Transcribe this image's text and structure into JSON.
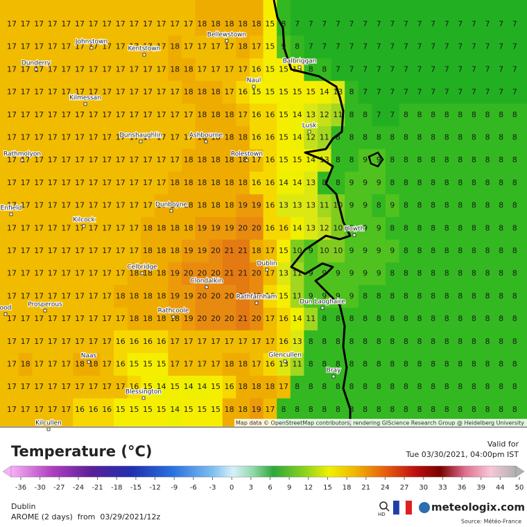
{
  "map": {
    "attribution": "Map data © OpenStreetMap contributors, rendering GIScience Research Group @ Heidelberg University",
    "places": [
      "Bellewstown",
      "Johnstown",
      "Kentstown",
      "Balbriggan",
      "Dunderry",
      "Naul",
      "Kilmessan",
      "Lusk",
      "Dunshaughlin",
      "Ashbourne",
      "Rathmolyon",
      "Rolestown",
      "Dunboyne",
      "Enfield",
      "Kilcock",
      "Howth",
      "Dublin",
      "Celbridge",
      "Clondalkin",
      "Rathfarnham",
      "Dun Laoghaire",
      "Prosperous",
      "ood",
      "Rathcoole",
      "Glencullen",
      "Naas",
      "Bray",
      "Blessington",
      "Kilcullen"
    ],
    "grid": [
      [
        17,
        17,
        17,
        17,
        17,
        17,
        17,
        17,
        17,
        17,
        17,
        17,
        17,
        17,
        18,
        18,
        18,
        18,
        18,
        15,
        8,
        7,
        7,
        7,
        7,
        7,
        7,
        7,
        7,
        7,
        7,
        7,
        7,
        7,
        7,
        7,
        7,
        7
      ],
      [
        17,
        17,
        17,
        17,
        17,
        17,
        17,
        17,
        17,
        17,
        17,
        17,
        18,
        17,
        17,
        17,
        17,
        18,
        17,
        15,
        9,
        8,
        7,
        7,
        7,
        7,
        7,
        7,
        7,
        7,
        7,
        7,
        7,
        7,
        7,
        7,
        7,
        7
      ],
      [
        17,
        17,
        17,
        17,
        17,
        17,
        17,
        17,
        17,
        17,
        17,
        17,
        18,
        18,
        17,
        17,
        17,
        17,
        16,
        15,
        15,
        15,
        8,
        8,
        7,
        7,
        7,
        7,
        7,
        7,
        7,
        7,
        7,
        7,
        7,
        7,
        7,
        7
      ],
      [
        17,
        17,
        17,
        17,
        17,
        17,
        17,
        17,
        17,
        17,
        17,
        17,
        17,
        18,
        18,
        18,
        17,
        16,
        15,
        15,
        15,
        15,
        15,
        14,
        13,
        8,
        7,
        7,
        7,
        7,
        7,
        7,
        7,
        7,
        7,
        7,
        7,
        7
      ],
      [
        17,
        17,
        17,
        17,
        17,
        17,
        17,
        17,
        17,
        17,
        17,
        17,
        17,
        17,
        18,
        18,
        18,
        17,
        16,
        16,
        15,
        14,
        13,
        12,
        11,
        8,
        8,
        7,
        7,
        8,
        8,
        8,
        8,
        8,
        8,
        8,
        8,
        8
      ],
      [
        17,
        17,
        17,
        17,
        17,
        17,
        17,
        17,
        17,
        17,
        17,
        17,
        17,
        17,
        18,
        18,
        18,
        18,
        16,
        16,
        15,
        14,
        12,
        11,
        8,
        8,
        8,
        8,
        8,
        8,
        8,
        8,
        8,
        8,
        8,
        8,
        8,
        8
      ],
      [
        17,
        17,
        17,
        17,
        17,
        17,
        17,
        17,
        17,
        17,
        17,
        17,
        17,
        18,
        18,
        18,
        18,
        18,
        17,
        16,
        15,
        15,
        14,
        13,
        8,
        8,
        9,
        9,
        8,
        8,
        8,
        8,
        8,
        8,
        8,
        8,
        8,
        8
      ],
      [
        17,
        17,
        17,
        17,
        17,
        17,
        17,
        17,
        17,
        17,
        17,
        17,
        18,
        18,
        18,
        18,
        18,
        18,
        16,
        16,
        14,
        14,
        13,
        8,
        8,
        9,
        9,
        9,
        8,
        8,
        8,
        8,
        8,
        8,
        8,
        8,
        8,
        8
      ],
      [
        17,
        17,
        17,
        17,
        17,
        17,
        17,
        17,
        17,
        17,
        17,
        18,
        18,
        18,
        18,
        18,
        18,
        19,
        19,
        16,
        13,
        13,
        13,
        11,
        10,
        9,
        9,
        8,
        9,
        8,
        8,
        8,
        8,
        8,
        8,
        8,
        8,
        8
      ],
      [
        17,
        17,
        17,
        17,
        17,
        17,
        17,
        17,
        17,
        17,
        18,
        18,
        18,
        18,
        19,
        19,
        19,
        20,
        20,
        16,
        16,
        14,
        13,
        12,
        10,
        9,
        9,
        9,
        8,
        8,
        8,
        8,
        8,
        8,
        8,
        8,
        8,
        8
      ],
      [
        17,
        17,
        17,
        17,
        17,
        17,
        17,
        17,
        17,
        17,
        18,
        18,
        18,
        19,
        19,
        20,
        21,
        21,
        18,
        17,
        15,
        10,
        9,
        10,
        10,
        9,
        9,
        9,
        9,
        8,
        8,
        8,
        8,
        8,
        8,
        8,
        8,
        8
      ],
      [
        17,
        17,
        17,
        17,
        17,
        17,
        17,
        17,
        17,
        18,
        18,
        18,
        19,
        20,
        20,
        20,
        21,
        21,
        20,
        17,
        13,
        11,
        9,
        9,
        9,
        9,
        9,
        9,
        8,
        8,
        8,
        8,
        8,
        8,
        8,
        8,
        8,
        8
      ],
      [
        17,
        17,
        17,
        17,
        17,
        17,
        17,
        17,
        18,
        18,
        18,
        18,
        19,
        19,
        20,
        20,
        20,
        21,
        20,
        16,
        15,
        11,
        9,
        9,
        9,
        9,
        8,
        8,
        8,
        8,
        8,
        8,
        8,
        8,
        8,
        8,
        8,
        8
      ],
      [
        17,
        17,
        17,
        17,
        17,
        17,
        17,
        17,
        17,
        18,
        18,
        18,
        18,
        19,
        20,
        20,
        20,
        21,
        20,
        17,
        16,
        14,
        11,
        8,
        8,
        8,
        8,
        8,
        8,
        8,
        8,
        8,
        8,
        8,
        8,
        8,
        8,
        8
      ],
      [
        17,
        17,
        17,
        17,
        17,
        17,
        17,
        17,
        16,
        16,
        16,
        16,
        17,
        17,
        17,
        17,
        17,
        17,
        17,
        17,
        16,
        13,
        8,
        8,
        8,
        8,
        8,
        8,
        8,
        8,
        8,
        8,
        8,
        8,
        8,
        8,
        8,
        8
      ],
      [
        17,
        18,
        17,
        17,
        17,
        18,
        18,
        17,
        16,
        15,
        15,
        15,
        17,
        17,
        17,
        17,
        18,
        18,
        17,
        16,
        13,
        11,
        8,
        8,
        8,
        8,
        8,
        8,
        8,
        8,
        8,
        8,
        8,
        8,
        8,
        8,
        8,
        8
      ],
      [
        17,
        17,
        17,
        17,
        17,
        17,
        17,
        17,
        17,
        16,
        15,
        14,
        15,
        14,
        14,
        15,
        16,
        18,
        18,
        18,
        17,
        8,
        8,
        8,
        8,
        8,
        8,
        8,
        8,
        8,
        8,
        8,
        8,
        8,
        8,
        8,
        8,
        8
      ],
      [
        17,
        17,
        17,
        17,
        17,
        16,
        16,
        16,
        15,
        15,
        15,
        15,
        14,
        15,
        15,
        15,
        18,
        18,
        19,
        17,
        8,
        8,
        8,
        8,
        8,
        8,
        8,
        8,
        8,
        8,
        8,
        8,
        8,
        8,
        8,
        8,
        8,
        8
      ]
    ]
  },
  "legend": {
    "title": "Temperature (°C)",
    "ticks": [
      -36,
      -30,
      -27,
      -24,
      -21,
      -18,
      -15,
      -12,
      -9,
      -6,
      -3,
      0,
      3,
      6,
      9,
      12,
      15,
      18,
      21,
      24,
      27,
      30,
      33,
      36,
      39,
      44,
      50
    ]
  },
  "valid": {
    "label": "Valid for",
    "time": "Tue 03/30/2021, 04:00pm IST"
  },
  "footer": {
    "location": "Dublin",
    "model": "AROME (2 days)  from  03/29/2021/12z",
    "hd": "HD",
    "brand": "meteologix.com",
    "source": "Source: Météo-France"
  }
}
